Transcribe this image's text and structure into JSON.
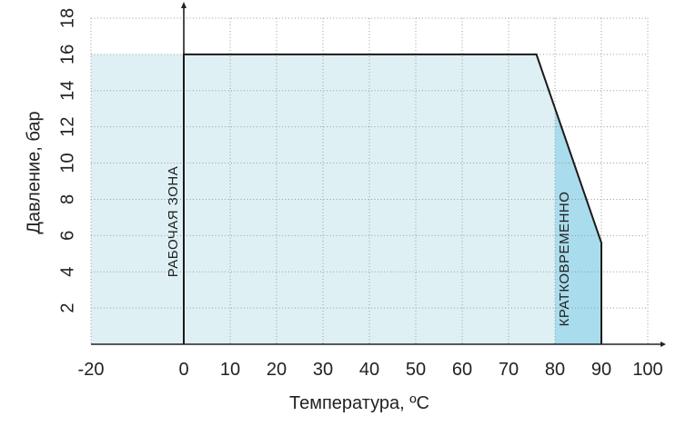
{
  "chart_data": {
    "type": "area",
    "xlabel": "Температура, ºС",
    "ylabel": "Давление, бар",
    "xlim": [
      -20,
      100
    ],
    "ylim": [
      0,
      18
    ],
    "x_ticks": [
      "-20",
      "0",
      "10",
      "20",
      "30",
      "40",
      "50",
      "60",
      "70",
      "80",
      "90",
      "100"
    ],
    "y_ticks": [
      "2",
      "4",
      "6",
      "8",
      "10",
      "12",
      "14",
      "16",
      "18"
    ],
    "grid": true,
    "envelope": {
      "x": [
        0,
        0,
        76,
        90,
        90
      ],
      "y": [
        0,
        16,
        16,
        5.6,
        0
      ]
    },
    "background_band": {
      "x_from": -20,
      "x_to": 0,
      "y_to": 16
    },
    "zones": [
      {
        "label": "РАБОЧАЯ ЗОНА",
        "x_from": -20,
        "x_to": 80,
        "color": "#dff0f5"
      },
      {
        "label": "КРАТКОВРЕМЕННО",
        "x_from": 80,
        "x_to": 90,
        "color": "#a9dcec"
      }
    ],
    "colors": {
      "line": "#1a1a1a",
      "axis": "#222222",
      "grid": "#9a9a9a"
    }
  }
}
